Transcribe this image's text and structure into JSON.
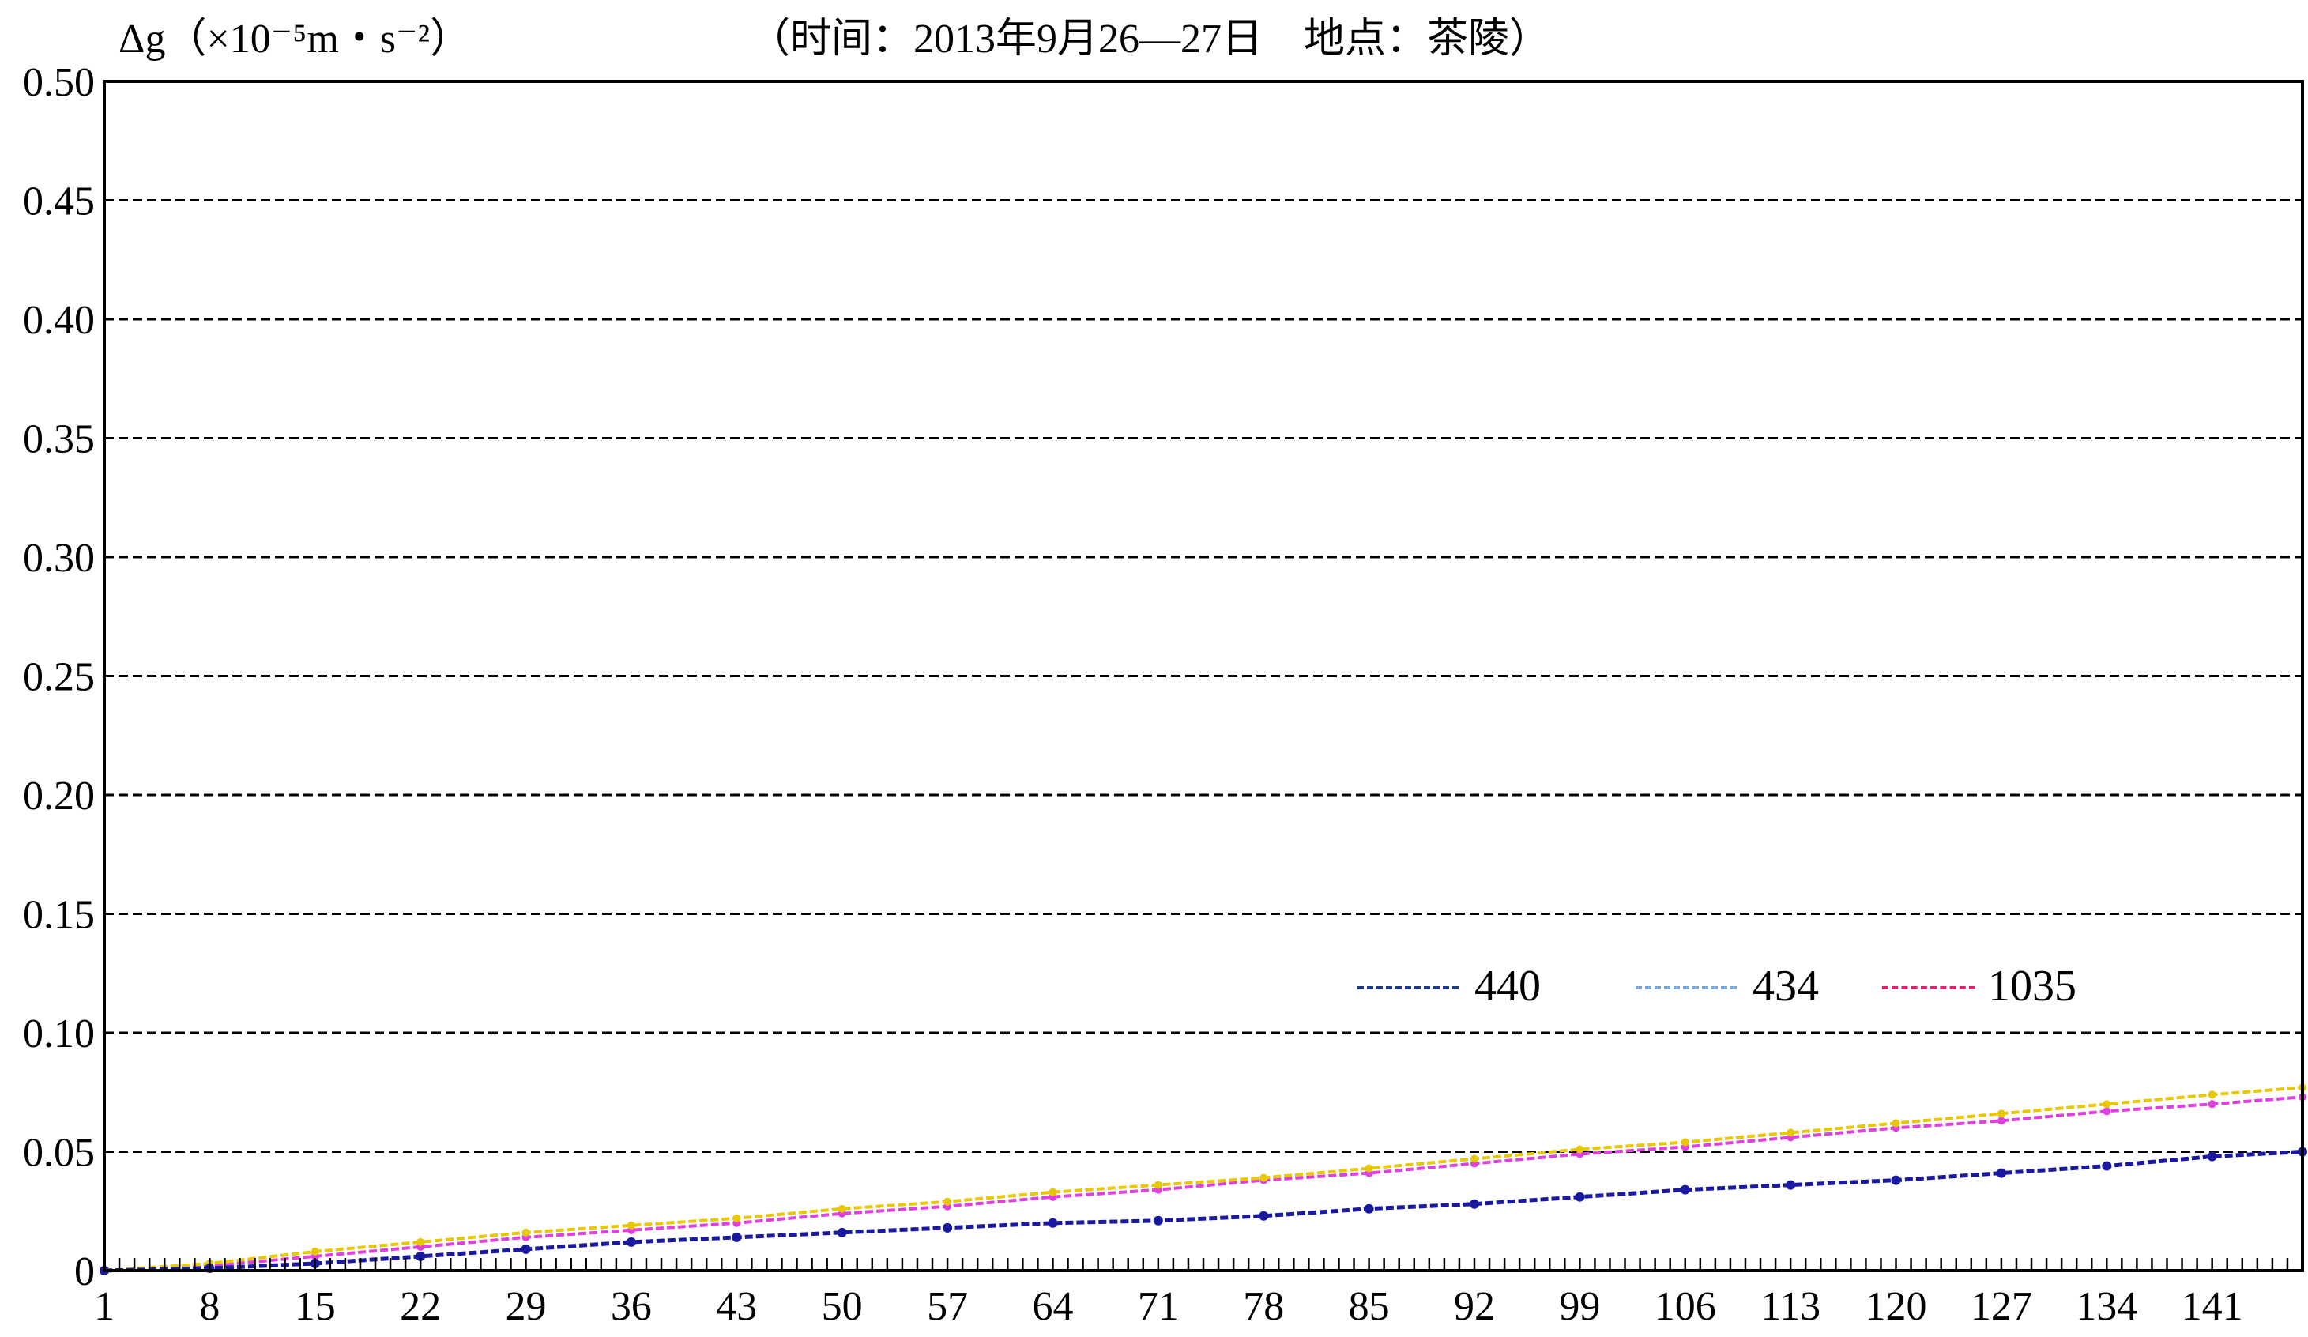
{
  "chart_data": {
    "type": "line",
    "title": "（时间：2013年9月26—27日　地点：茶陵）",
    "ylabel": "Δg（×10⁻⁵m・s⁻²）",
    "xlabel": "",
    "x_range": [
      1,
      147
    ],
    "x_tick_labels": [
      "1",
      "8",
      "15",
      "22",
      "29",
      "36",
      "43",
      "50",
      "57",
      "64",
      "71",
      "78",
      "85",
      "92",
      "99",
      "106",
      "113",
      "120",
      "127",
      "134",
      "141"
    ],
    "ylim": [
      0,
      0.5
    ],
    "y_tick_labels": [
      "0",
      "0.05",
      "0.10",
      "0.15",
      "0.20",
      "0.25",
      "0.30",
      "0.35",
      "0.40",
      "0.45",
      "0.50"
    ],
    "y_ticks": [
      0,
      0.05,
      0.1,
      0.15,
      0.2,
      0.25,
      0.3,
      0.35,
      0.4,
      0.45,
      0.5
    ],
    "grid": "horizontal dashed",
    "legend_position": "lower-right",
    "series": [
      {
        "name": "440",
        "color": "#1a1aa0",
        "x": [
          1,
          8,
          15,
          22,
          29,
          36,
          43,
          50,
          57,
          64,
          71,
          78,
          85,
          92,
          99,
          106,
          113,
          120,
          127,
          134,
          141,
          147
        ],
        "values": [
          0,
          0.001,
          0.003,
          0.006,
          0.009,
          0.012,
          0.014,
          0.016,
          0.018,
          0.02,
          0.021,
          0.023,
          0.026,
          0.028,
          0.031,
          0.034,
          0.036,
          0.038,
          0.041,
          0.044,
          0.048,
          0.05
        ]
      },
      {
        "name": "434",
        "color": "#e8c800",
        "x": [
          1,
          8,
          15,
          22,
          29,
          36,
          43,
          50,
          57,
          64,
          71,
          78,
          85,
          92,
          99,
          106,
          113,
          120,
          127,
          134,
          141,
          147
        ],
        "values": [
          0,
          0.003,
          0.008,
          0.012,
          0.016,
          0.019,
          0.022,
          0.026,
          0.029,
          0.033,
          0.036,
          0.039,
          0.043,
          0.047,
          0.051,
          0.054,
          0.058,
          0.062,
          0.066,
          0.07,
          0.074,
          0.077
        ]
      },
      {
        "name": "1035",
        "color": "#e040e0",
        "x": [
          1,
          8,
          15,
          22,
          29,
          36,
          43,
          50,
          57,
          64,
          71,
          78,
          85,
          92,
          99,
          106,
          113,
          120,
          127,
          134,
          141,
          147
        ],
        "values": [
          0,
          0.002,
          0.006,
          0.01,
          0.014,
          0.017,
          0.02,
          0.024,
          0.027,
          0.031,
          0.034,
          0.038,
          0.041,
          0.045,
          0.049,
          0.052,
          0.056,
          0.06,
          0.063,
          0.067,
          0.07,
          0.073
        ]
      }
    ]
  },
  "legend": {
    "items": [
      {
        "label": "440",
        "line_color": "#1a3a8a"
      },
      {
        "label": "434",
        "line_color": "#7aa8d8"
      },
      {
        "label": "1035",
        "line_color": "#e0206a"
      }
    ]
  }
}
